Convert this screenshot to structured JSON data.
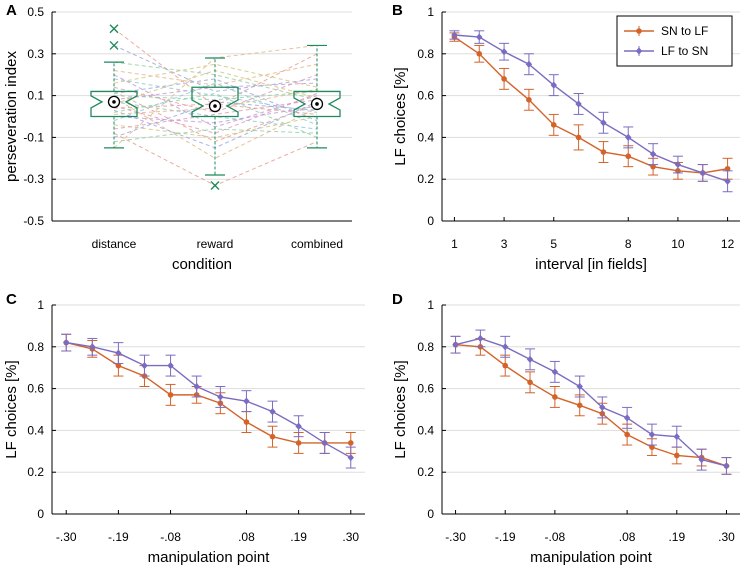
{
  "colors": {
    "sn_to_lf": "#d4632a",
    "lf_to_sn": "#7b6cc2",
    "box": "#1f8a5c",
    "grid": "#dddddd",
    "axis": "#000000"
  },
  "chart_data": [
    {
      "panel": "A",
      "type": "box",
      "xlabel": "condition",
      "ylabel": "perseveration index",
      "ylim": [
        -0.5,
        0.5
      ],
      "yticks": [
        -0.5,
        -0.3,
        -0.1,
        0.1,
        0.3,
        0.5
      ],
      "ytick_labels": [
        "-0.5",
        "-0.3",
        "-0.1",
        "0.1",
        "0.3",
        "0.5"
      ],
      "categories": [
        "distance",
        "reward",
        "combined"
      ],
      "boxes": [
        {
          "q1": 0.0,
          "median": 0.07,
          "q3": 0.12,
          "whisker_low": -0.15,
          "whisker_high": 0.26,
          "outliers": [
            0.42,
            0.34
          ]
        },
        {
          "q1": 0.0,
          "median": 0.05,
          "q3": 0.14,
          "whisker_low": -0.28,
          "whisker_high": 0.28,
          "outliers": [
            -0.33
          ]
        },
        {
          "q1": 0.0,
          "median": 0.06,
          "q3": 0.12,
          "whisker_low": -0.15,
          "whisker_high": 0.34,
          "outliers": []
        }
      ],
      "subject_lines": [
        [
          0.42,
          0.05,
          0.3
        ],
        [
          0.34,
          0.12,
          0.18
        ],
        [
          0.26,
          0.2,
          0.08
        ],
        [
          0.22,
          0.15,
          0.25
        ],
        [
          0.2,
          -0.05,
          0.1
        ],
        [
          0.18,
          0.1,
          0.02
        ],
        [
          0.16,
          0.25,
          0.14
        ],
        [
          0.14,
          0.02,
          0.2
        ],
        [
          0.12,
          -0.12,
          0.06
        ],
        [
          0.11,
          0.18,
          -0.02
        ],
        [
          0.1,
          0.08,
          0.12
        ],
        [
          0.09,
          -0.2,
          0.04
        ],
        [
          0.08,
          0.14,
          0.16
        ],
        [
          0.07,
          0.0,
          -0.06
        ],
        [
          0.06,
          0.22,
          0.09
        ],
        [
          0.05,
          -0.08,
          0.11
        ],
        [
          0.04,
          0.06,
          0.01
        ],
        [
          0.03,
          -0.15,
          0.07
        ],
        [
          0.02,
          0.11,
          -0.1
        ],
        [
          0.01,
          0.04,
          0.13
        ],
        [
          0.0,
          -0.03,
          0.05
        ],
        [
          -0.02,
          0.16,
          -0.04
        ],
        [
          -0.04,
          -0.1,
          0.0
        ],
        [
          -0.06,
          0.01,
          0.08
        ],
        [
          -0.08,
          -0.33,
          -0.12
        ],
        [
          -0.1,
          0.07,
          0.03
        ],
        [
          -0.12,
          -0.06,
          -0.08
        ],
        [
          -0.15,
          0.28,
          0.34
        ]
      ]
    },
    {
      "panel": "B",
      "type": "line",
      "xlabel": "interval [in fields]",
      "ylabel": "LF choices [%]",
      "x": [
        1,
        2,
        3,
        4,
        5,
        6,
        7,
        8,
        9,
        10,
        11,
        12
      ],
      "xticks": [
        1,
        3,
        5,
        8,
        10,
        12
      ],
      "xtick_labels": [
        "1",
        "3",
        "5",
        "8",
        "10",
        "12"
      ],
      "xlim": [
        0.5,
        12.5
      ],
      "ylim": [
        0,
        1
      ],
      "yticks": [
        0,
        0.2,
        0.4,
        0.6,
        0.8,
        1
      ],
      "ytick_labels": [
        "0",
        "0.2",
        "0.4",
        "0.6",
        "0.8",
        "1"
      ],
      "legend": {
        "position": "top-right",
        "entries": [
          "SN to LF",
          "LF to SN"
        ]
      },
      "series": [
        {
          "name": "SN to LF",
          "values": [
            0.88,
            0.8,
            0.68,
            0.58,
            0.46,
            0.4,
            0.33,
            0.31,
            0.26,
            0.24,
            0.23,
            0.25
          ],
          "errors": [
            0.02,
            0.04,
            0.05,
            0.05,
            0.05,
            0.06,
            0.05,
            0.05,
            0.04,
            0.04,
            0.04,
            0.05
          ]
        },
        {
          "name": "LF to SN",
          "values": [
            0.89,
            0.88,
            0.81,
            0.75,
            0.65,
            0.56,
            0.47,
            0.4,
            0.32,
            0.27,
            0.23,
            0.19
          ],
          "errors": [
            0.02,
            0.03,
            0.04,
            0.05,
            0.05,
            0.05,
            0.05,
            0.05,
            0.05,
            0.04,
            0.04,
            0.05
          ]
        }
      ]
    },
    {
      "panel": "C",
      "type": "line",
      "xlabel": "manipulation point",
      "ylabel": "LF choices [%]",
      "x": [
        -0.3,
        -0.245,
        -0.19,
        -0.135,
        -0.08,
        -0.025,
        0.025,
        0.08,
        0.135,
        0.19,
        0.245,
        0.3
      ],
      "xticks": [
        -0.3,
        -0.19,
        -0.08,
        0.08,
        0.19,
        0.3
      ],
      "xtick_labels": [
        "-.30",
        "-.19",
        "-.08",
        ".08",
        ".19",
        ".30"
      ],
      "xlim": [
        -0.33,
        0.33
      ],
      "ylim": [
        0,
        1
      ],
      "yticks": [
        0,
        0.2,
        0.4,
        0.6,
        0.8,
        1
      ],
      "ytick_labels": [
        "0",
        "0.2",
        "0.4",
        "0.6",
        "0.8",
        "1"
      ],
      "series": [
        {
          "name": "SN to LF",
          "values": [
            0.82,
            0.79,
            0.71,
            0.66,
            0.57,
            0.57,
            0.53,
            0.44,
            0.37,
            0.34,
            0.34,
            0.34
          ],
          "errors": [
            0.04,
            0.04,
            0.05,
            0.05,
            0.05,
            0.04,
            0.05,
            0.05,
            0.05,
            0.05,
            0.05,
            0.05
          ]
        },
        {
          "name": "LF to SN",
          "values": [
            0.82,
            0.8,
            0.77,
            0.71,
            0.71,
            0.61,
            0.56,
            0.54,
            0.49,
            0.42,
            0.34,
            0.27
          ],
          "errors": [
            0.04,
            0.04,
            0.05,
            0.05,
            0.05,
            0.05,
            0.05,
            0.05,
            0.05,
            0.05,
            0.05,
            0.05
          ]
        }
      ]
    },
    {
      "panel": "D",
      "type": "line",
      "xlabel": "manipulation point",
      "ylabel": "LF choices [%]",
      "x": [
        -0.3,
        -0.245,
        -0.19,
        -0.135,
        -0.08,
        -0.025,
        0.025,
        0.08,
        0.135,
        0.19,
        0.245,
        0.3
      ],
      "xticks": [
        -0.3,
        -0.19,
        -0.08,
        0.08,
        0.19,
        0.3
      ],
      "xtick_labels": [
        "-.30",
        "-.19",
        "-.08",
        ".08",
        ".19",
        ".30"
      ],
      "xlim": [
        -0.33,
        0.33
      ],
      "ylim": [
        0,
        1
      ],
      "yticks": [
        0,
        0.2,
        0.4,
        0.6,
        0.8,
        1
      ],
      "ytick_labels": [
        "0",
        "0.2",
        "0.4",
        "0.6",
        "0.8",
        "1"
      ],
      "series": [
        {
          "name": "SN to LF",
          "values": [
            0.81,
            0.8,
            0.71,
            0.63,
            0.56,
            0.52,
            0.48,
            0.38,
            0.32,
            0.28,
            0.27,
            0.23
          ],
          "errors": [
            0.04,
            0.04,
            0.05,
            0.05,
            0.05,
            0.05,
            0.05,
            0.05,
            0.04,
            0.04,
            0.04,
            0.04
          ]
        },
        {
          "name": "LF to SN",
          "values": [
            0.81,
            0.84,
            0.8,
            0.74,
            0.68,
            0.61,
            0.51,
            0.46,
            0.38,
            0.37,
            0.26,
            0.23
          ],
          "errors": [
            0.04,
            0.04,
            0.05,
            0.05,
            0.05,
            0.05,
            0.05,
            0.05,
            0.05,
            0.05,
            0.05,
            0.04
          ]
        }
      ]
    }
  ]
}
